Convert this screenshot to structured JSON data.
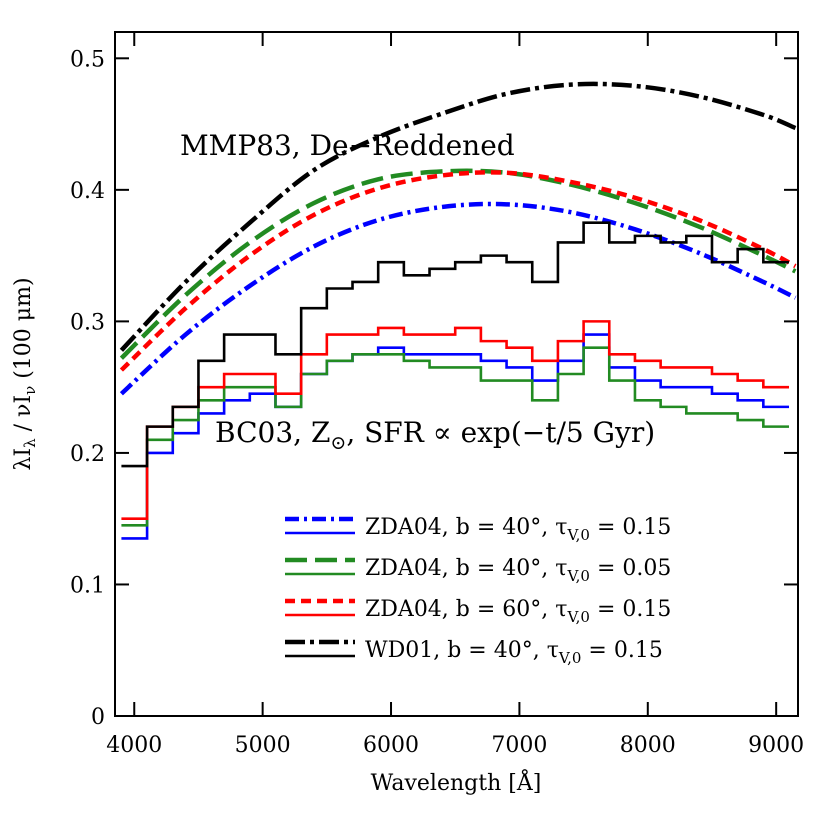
{
  "chart_data": {
    "type": "line",
    "xlabel": "Wavelength [Å]",
    "ylabel_parts": [
      "λI",
      "λ",
      " / νI",
      "ν",
      " (100 μm)"
    ],
    "annotations": [
      {
        "parts": [
          "MMP83, De−Reddened"
        ]
      },
      {
        "parts": [
          "BC03, Z",
          "⊙",
          ", SFR ∝ exp(−t/5 Gyr)"
        ]
      }
    ],
    "xlim": [
      3850,
      9170
    ],
    "xticks": [
      4000,
      5000,
      6000,
      7000,
      8000,
      9000
    ],
    "ylim": [
      0,
      0.52
    ],
    "yticks": [
      0,
      0.1,
      0.2,
      0.3,
      0.4,
      0.5
    ],
    "x": [
      3900,
      4400,
      4900,
      5400,
      5900,
      6400,
      6900,
      7400,
      7900,
      8400,
      8900,
      9150
    ],
    "bins": [
      3900,
      4100,
      4300,
      4500,
      4700,
      4900,
      5100,
      5300,
      5500,
      5700,
      5900,
      6100,
      6300,
      6500,
      6700,
      6900,
      7100,
      7300,
      7500,
      7700,
      7900,
      8100,
      8300,
      8500,
      8700,
      8900,
      9100
    ],
    "series": [
      {
        "name_parts": [
          "ZDA04, b = 40°, τ",
          "V,0",
          " = 0.15"
        ],
        "color": "#0000ff",
        "dash": "14,5,3,5",
        "values": [
          0.245,
          0.29,
          0.327,
          0.357,
          0.377,
          0.387,
          0.389,
          0.383,
          0.37,
          0.352,
          0.33,
          0.318
        ],
        "step_values": [
          0.135,
          0.2,
          0.215,
          0.23,
          0.24,
          0.245,
          0.235,
          0.26,
          0.27,
          0.275,
          0.28,
          0.275,
          0.275,
          0.275,
          0.27,
          0.265,
          0.255,
          0.27,
          0.29,
          0.265,
          0.255,
          0.25,
          0.25,
          0.245,
          0.24,
          0.235
        ]
      },
      {
        "name_parts": [
          "ZDA04, b = 40°, τ",
          "V,0",
          " = 0.05"
        ],
        "color": "#228b22",
        "dash": "22,8",
        "values": [
          0.272,
          0.32,
          0.36,
          0.39,
          0.408,
          0.414,
          0.413,
          0.404,
          0.39,
          0.372,
          0.35,
          0.338
        ],
        "step_values": [
          0.145,
          0.21,
          0.225,
          0.24,
          0.25,
          0.25,
          0.235,
          0.26,
          0.27,
          0.275,
          0.275,
          0.27,
          0.265,
          0.265,
          0.255,
          0.255,
          0.24,
          0.26,
          0.28,
          0.255,
          0.24,
          0.235,
          0.23,
          0.23,
          0.225,
          0.22
        ]
      },
      {
        "name_parts": [
          "ZDA04, b = 60°, τ",
          "V,0",
          " = 0.15"
        ],
        "color": "#ff0000",
        "dash": "10,6",
        "values": [
          0.263,
          0.31,
          0.35,
          0.381,
          0.401,
          0.411,
          0.413,
          0.406,
          0.394,
          0.377,
          0.355,
          0.342
        ],
        "step_values": [
          0.15,
          0.22,
          0.235,
          0.25,
          0.26,
          0.26,
          0.245,
          0.275,
          0.29,
          0.29,
          0.295,
          0.29,
          0.29,
          0.295,
          0.285,
          0.28,
          0.27,
          0.285,
          0.3,
          0.275,
          0.27,
          0.265,
          0.265,
          0.26,
          0.255,
          0.25
        ]
      },
      {
        "name_parts": [
          "WD01, b = 40°, τ",
          "V,0",
          " = 0.15"
        ],
        "color": "#000000",
        "dash": "20,5,4,5",
        "values": [
          0.278,
          0.33,
          0.375,
          0.415,
          0.44,
          0.458,
          0.473,
          0.48,
          0.479,
          0.471,
          0.457,
          0.447
        ],
        "step_values": [
          0.19,
          0.22,
          0.235,
          0.27,
          0.29,
          0.29,
          0.275,
          0.31,
          0.325,
          0.33,
          0.345,
          0.335,
          0.34,
          0.345,
          0.35,
          0.345,
          0.33,
          0.36,
          0.375,
          0.36,
          0.365,
          0.36,
          0.365,
          0.345,
          0.355,
          0.345
        ]
      }
    ]
  }
}
